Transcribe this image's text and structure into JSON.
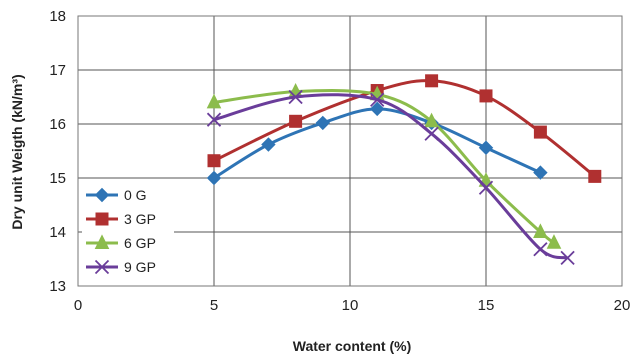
{
  "chart_data": {
    "type": "line",
    "xlabel": "Water content (%)",
    "ylabel": "Dry unit Weigth (kN/m³)",
    "xlim": [
      0,
      20
    ],
    "ylim": [
      13,
      18
    ],
    "xticks": [
      "0",
      "5",
      "10",
      "15",
      "20"
    ],
    "yticks": [
      "13",
      "14",
      "15",
      "16",
      "17",
      "18"
    ],
    "grid": true,
    "legend_position": "bottom-left",
    "series": [
      {
        "name": "0 G",
        "color": "#2e74b5",
        "marker": "diamond",
        "x": [
          5,
          7,
          9,
          11,
          13,
          15,
          17
        ],
        "y": [
          15.0,
          15.62,
          16.02,
          16.28,
          16.02,
          15.56,
          15.1
        ]
      },
      {
        "name": "3 GP",
        "color": "#b03030",
        "marker": "square",
        "x": [
          5,
          8,
          11,
          13,
          15,
          17,
          19
        ],
        "y": [
          15.32,
          16.05,
          16.62,
          16.8,
          16.52,
          15.85,
          15.03
        ]
      },
      {
        "name": "6 GP",
        "color": "#8cbc4c",
        "marker": "triangle",
        "x": [
          5,
          8,
          11,
          13,
          15,
          17,
          17.5
        ],
        "y": [
          16.4,
          16.6,
          16.55,
          16.05,
          14.95,
          14.0,
          13.8
        ]
      },
      {
        "name": "9 GP",
        "color": "#6a3d9a",
        "marker": "x",
        "x": [
          5,
          8,
          11,
          13,
          15,
          17,
          18
        ],
        "y": [
          16.08,
          16.5,
          16.45,
          15.82,
          14.82,
          13.68,
          13.52
        ]
      }
    ]
  }
}
